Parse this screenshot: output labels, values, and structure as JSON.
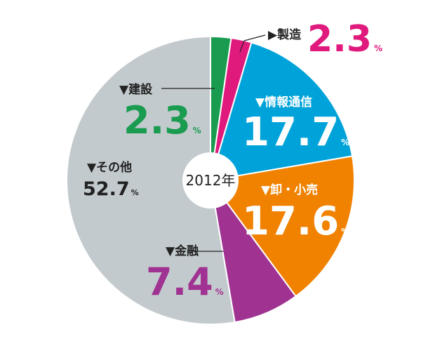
{
  "chart_data": {
    "type": "pie",
    "center_label": "2012年",
    "unit": "%",
    "slices": [
      {
        "label": "建設",
        "value": 2.3,
        "value_text": "2.3",
        "color": "#1a9c50",
        "label_color": "#1a9c50"
      },
      {
        "label": "製造",
        "value": 2.3,
        "value_text": "2.3",
        "color": "#e0197d",
        "label_color": "#e0197d"
      },
      {
        "label": "情報通信",
        "value": 17.7,
        "value_text": "17.7",
        "color": "#00a3d9",
        "label_color": "#ffffff"
      },
      {
        "label": "卸・小売",
        "value": 17.6,
        "value_text": "17.6",
        "color": "#f08200",
        "label_color": "#ffffff"
      },
      {
        "label": "金融",
        "value": 7.4,
        "value_text": "7.4",
        "color": "#a03291",
        "label_color": "#a03291"
      },
      {
        "label": "その他",
        "value": 52.7,
        "value_text": "52.7",
        "color": "#c3cace",
        "label_color": "#222222"
      }
    ]
  }
}
